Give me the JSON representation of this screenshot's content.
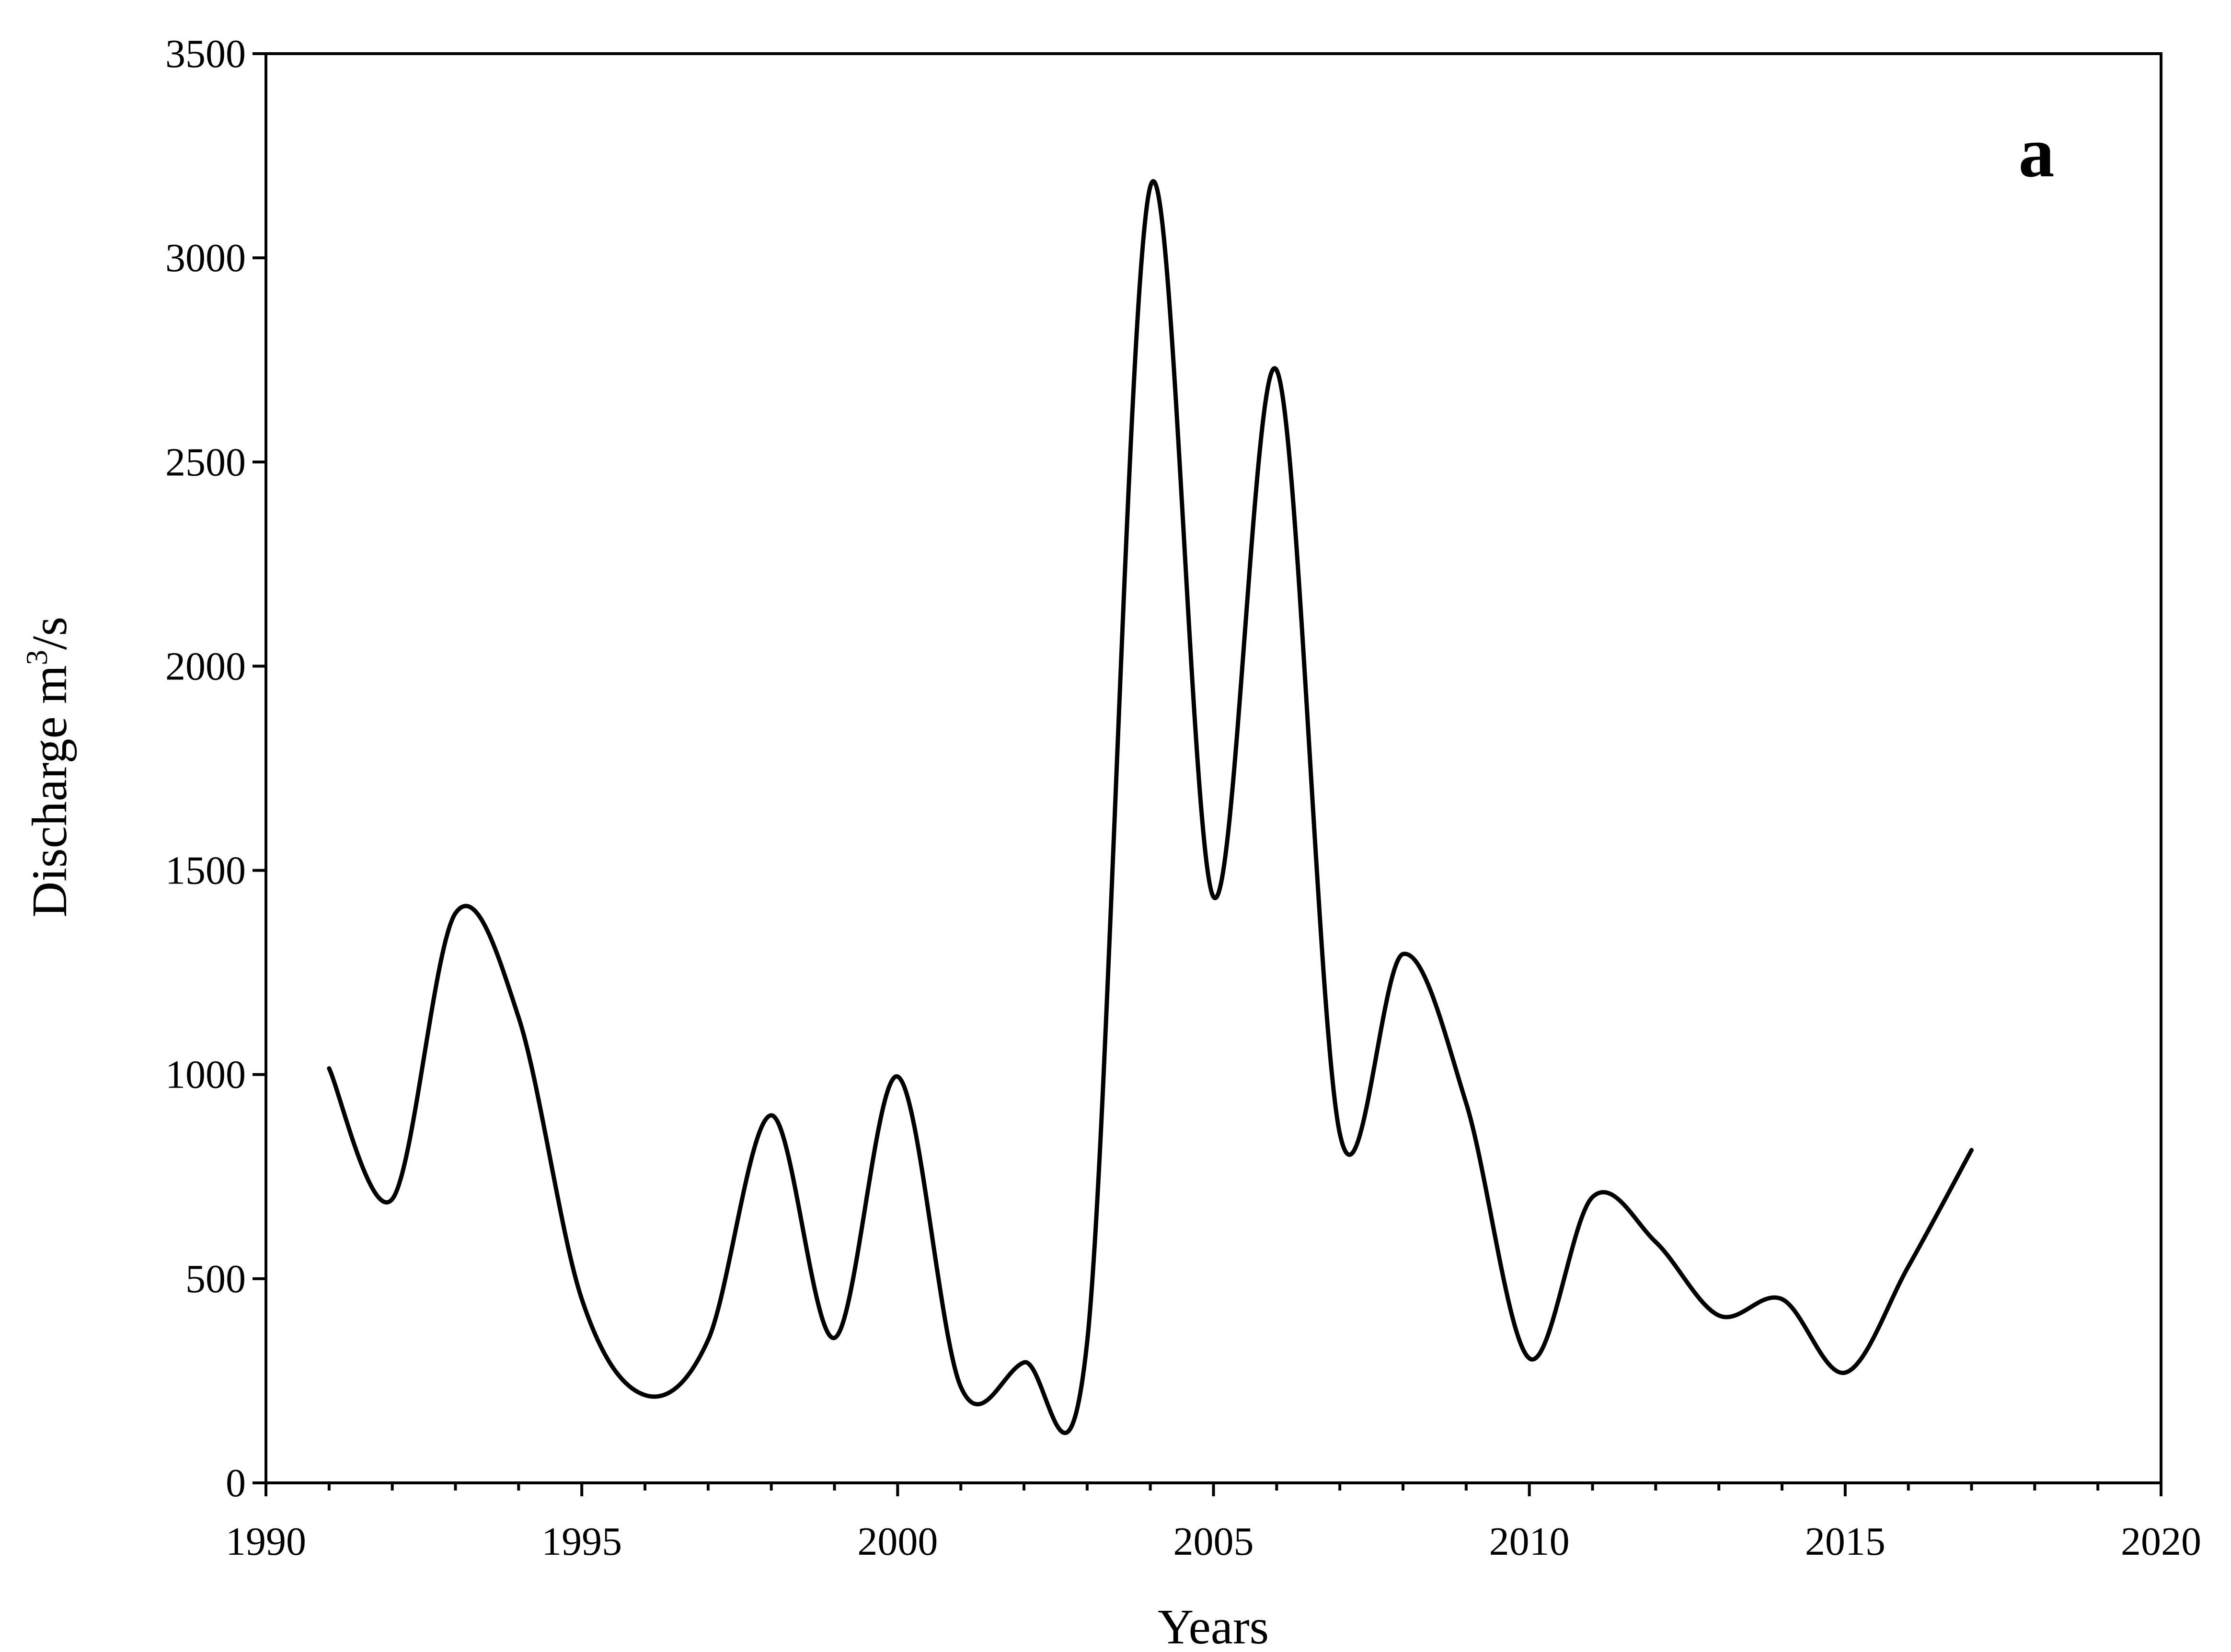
{
  "chart_data": {
    "type": "line",
    "xlabel": "Years",
    "ylabel": "Discharge m",
    "ylabel_sup": "3",
    "ylabel_suffix": "/s",
    "panel_label": "a",
    "xlim": [
      1990,
      2020
    ],
    "ylim": [
      0,
      3500
    ],
    "x_ticks": [
      1990,
      1995,
      2000,
      2005,
      2010,
      2015,
      2020
    ],
    "y_ticks": [
      0,
      500,
      1000,
      1500,
      2000,
      2500,
      3000,
      3500
    ],
    "grid": false,
    "legend": false,
    "line_color": "#000000",
    "series": [
      {
        "x": [
          1991,
          1992,
          1993,
          1994,
          1995,
          1996,
          1997,
          1998,
          1999,
          2000,
          2001,
          2002,
          2003,
          2004,
          2005,
          2006,
          2007,
          2008,
          2009,
          2010,
          2011,
          2012,
          2013,
          2014,
          2015,
          2016,
          2017
        ],
        "values": [
          1015,
          695,
          1395,
          1140,
          450,
          215,
          350,
          900,
          355,
          995,
          235,
          295,
          345,
          3175,
          1435,
          2725,
          855,
          1295,
          930,
          305,
          700,
          590,
          410,
          450,
          270,
          530,
          815
        ]
      }
    ]
  }
}
